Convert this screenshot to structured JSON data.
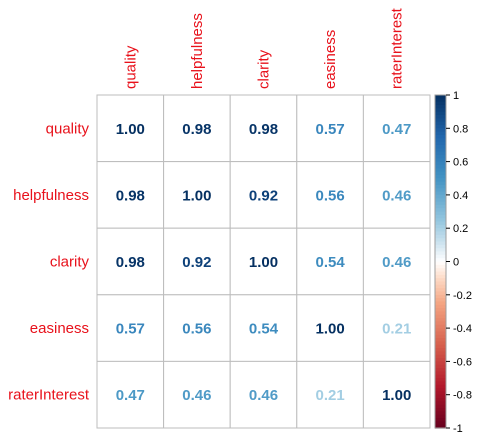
{
  "chart_data": {
    "type": "heatmap",
    "variables": [
      "quality",
      "helpfulness",
      "clarity",
      "easiness",
      "raterInterest"
    ],
    "matrix": [
      [
        1.0,
        0.98,
        0.98,
        0.57,
        0.47
      ],
      [
        0.98,
        1.0,
        0.92,
        0.56,
        0.46
      ],
      [
        0.98,
        0.92,
        1.0,
        0.54,
        0.46
      ],
      [
        0.57,
        0.56,
        0.54,
        1.0,
        0.21
      ],
      [
        0.47,
        0.46,
        0.46,
        0.21,
        1.0
      ]
    ],
    "color_scale": {
      "range": [
        -1,
        1
      ],
      "ticks": [
        "1",
        "0.8",
        "0.6",
        "0.4",
        "0.2",
        "0",
        "-0.2",
        "-0.4",
        "-0.6",
        "-0.8",
        "-1"
      ],
      "palette": "RdBu"
    },
    "label_color": "#e8111b"
  }
}
